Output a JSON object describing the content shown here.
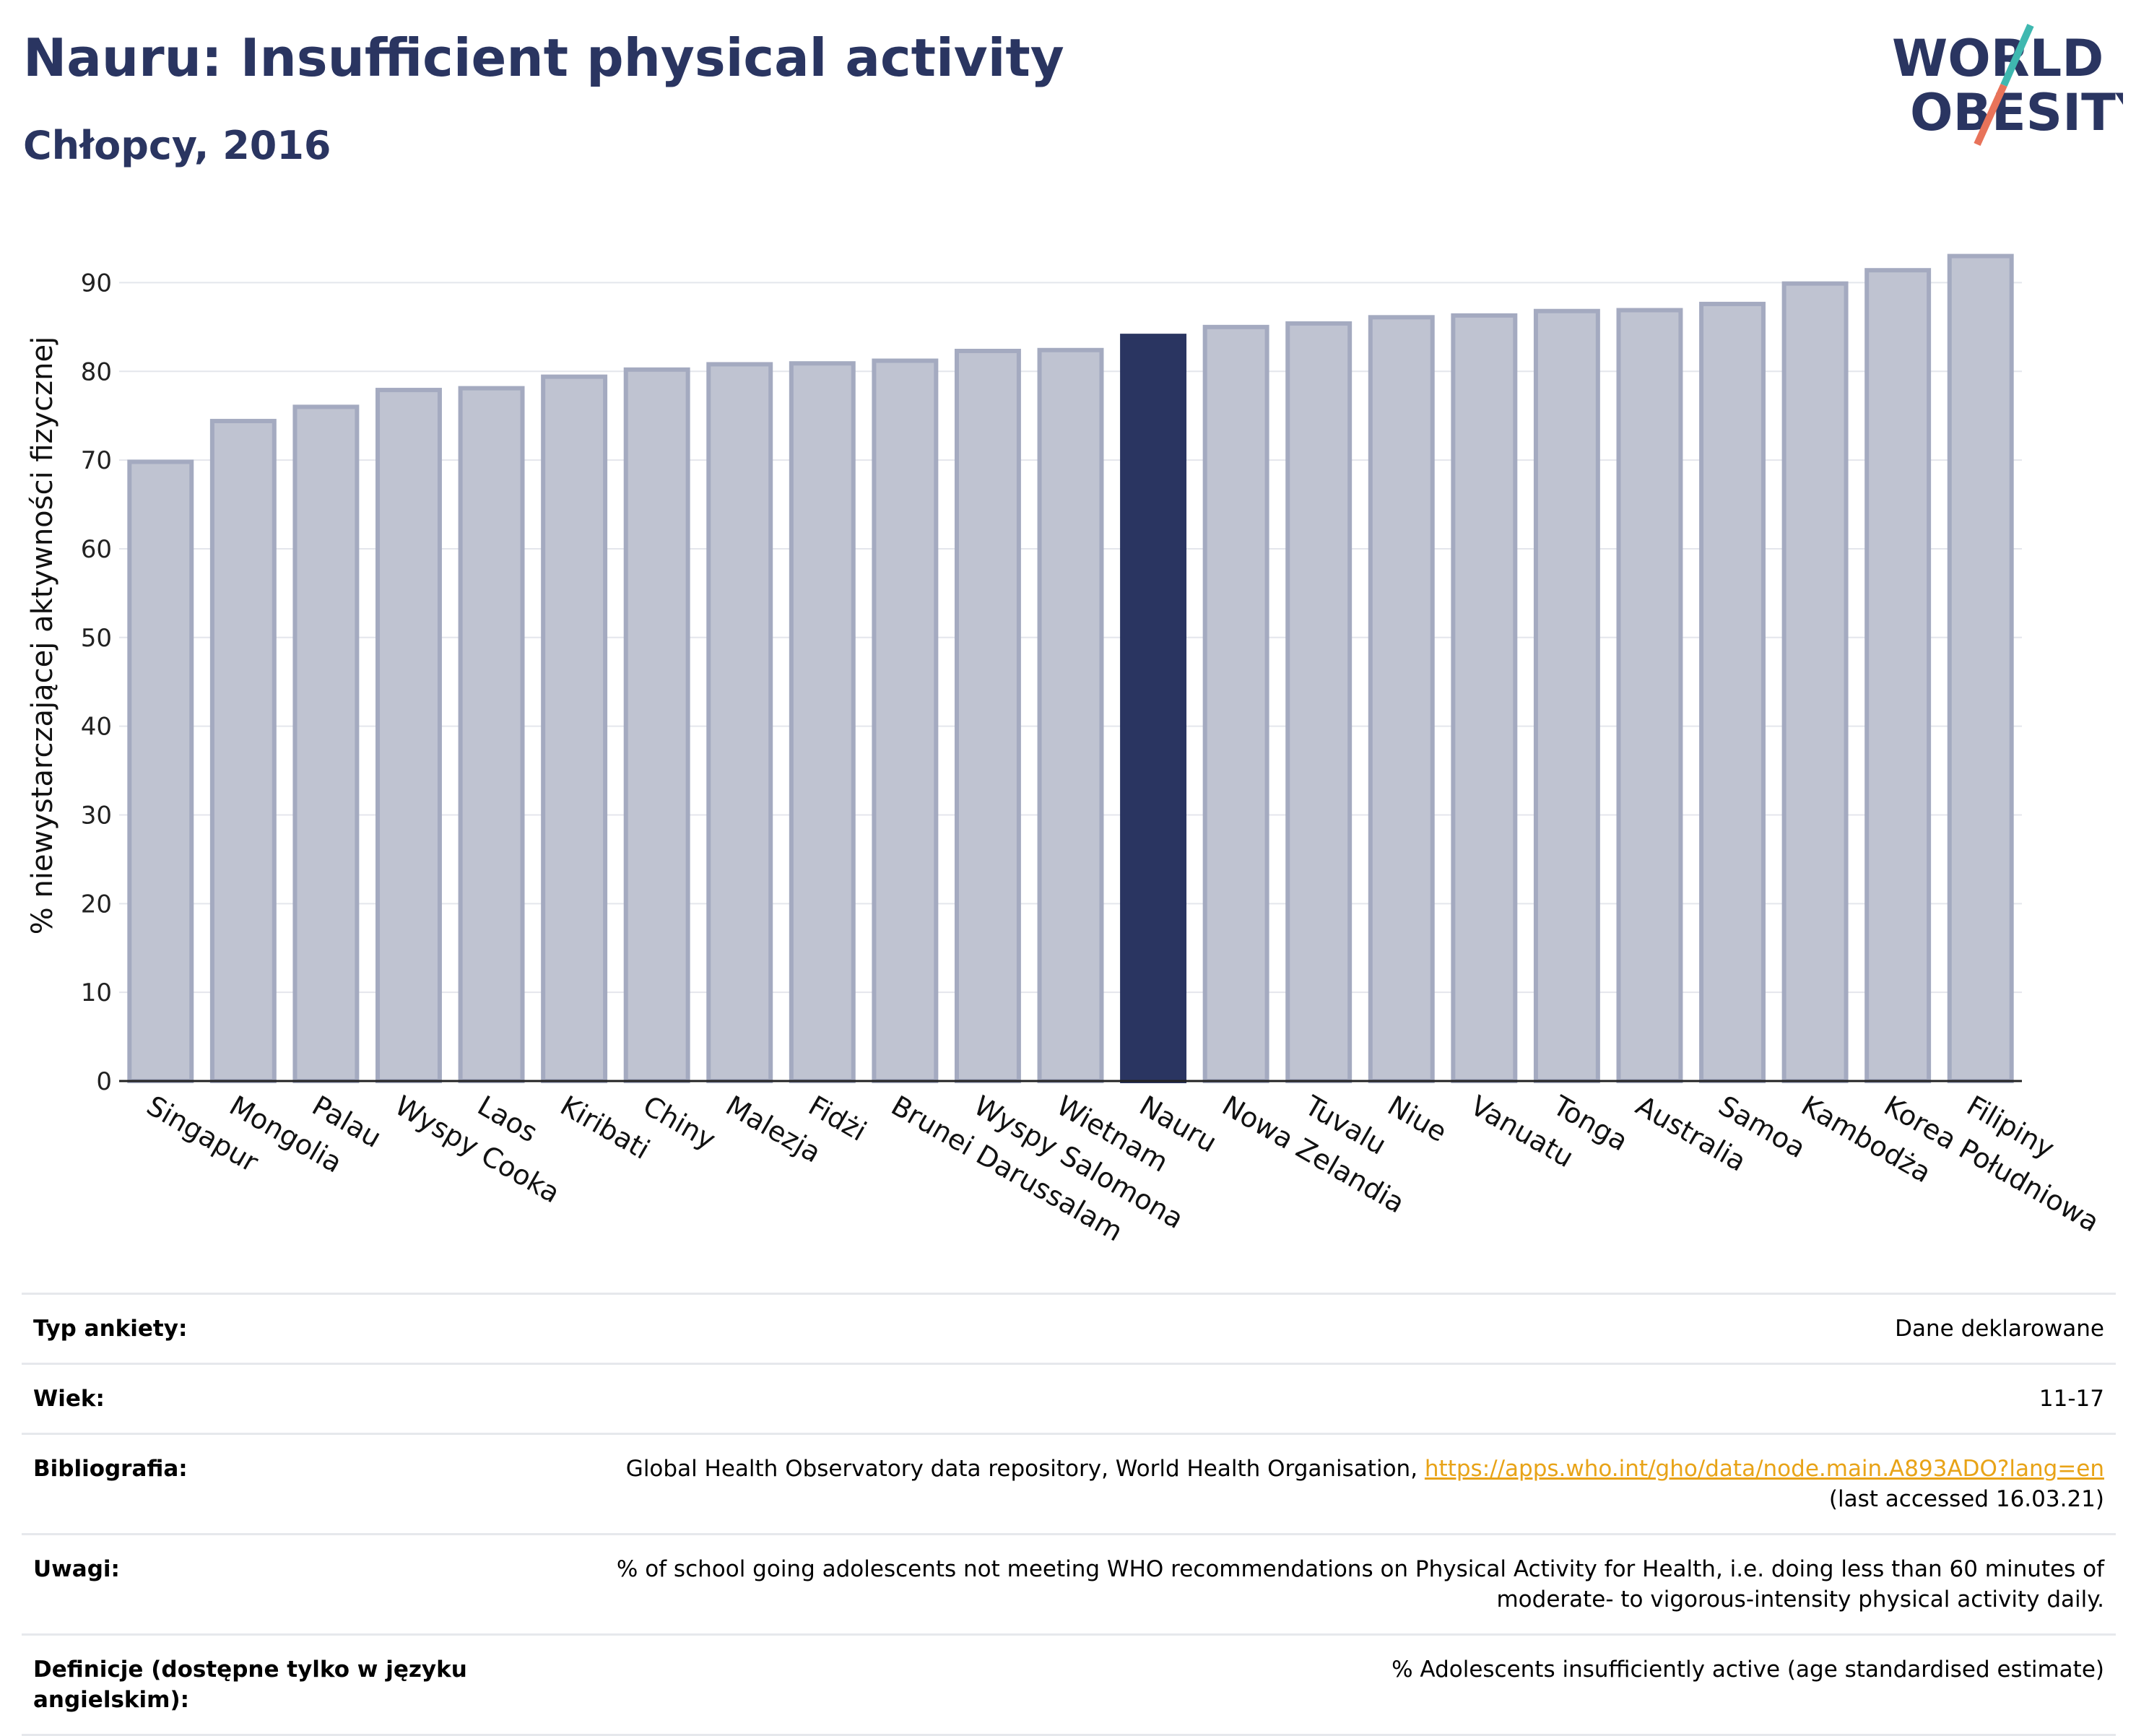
{
  "header": {
    "title": "Nauru: Insufficient physical activity",
    "subtitle": "Chłopcy, 2016",
    "logo_line1": "WORLD",
    "logo_line2": "OBESITY"
  },
  "colors": {
    "highlight_bar": "#2a3561",
    "other_bar_fill": "#bfc3d1",
    "other_bar_stroke": "#a4aac0",
    "title": "#2a3561",
    "logo_teal": "#3fb8b0",
    "logo_coral": "#e8735a",
    "link": "#e8a317"
  },
  "chart_data": {
    "type": "bar",
    "title": "Nauru: Insufficient physical activity",
    "subtitle": "Chłopcy, 2016",
    "xlabel": "",
    "ylabel": "% niewystarczającej aktywności fizycznej",
    "ylim": [
      0,
      95
    ],
    "yticks": [
      0,
      10,
      20,
      30,
      40,
      50,
      60,
      70,
      80,
      90
    ],
    "grid": true,
    "highlight": "Nauru",
    "categories": [
      "Singapur",
      "Mongolia",
      "Palau",
      "Wyspy Cooka",
      "Laos",
      "Kiribati",
      "Chiny",
      "Malezja",
      "Fidżi",
      "Brunei Darussalam",
      "Wyspy Salomona",
      "Wietnam",
      "Nauru",
      "Nowa Zelandia",
      "Tuvalu",
      "Niue",
      "Vanuatu",
      "Tonga",
      "Australia",
      "Samoa",
      "Kambodża",
      "Korea Południowa",
      "Filipiny"
    ],
    "values": [
      69.8,
      74.4,
      76.0,
      77.9,
      78.1,
      79.4,
      80.2,
      80.8,
      80.9,
      81.2,
      82.3,
      82.4,
      84.0,
      85.0,
      85.4,
      86.1,
      86.3,
      86.8,
      86.9,
      87.6,
      89.9,
      91.4,
      93.0
    ]
  },
  "info_table": [
    {
      "label": "Typ ankiety:",
      "value": "Dane deklarowane"
    },
    {
      "label": "Wiek:",
      "value": "11-17"
    },
    {
      "label": "Bibliografia:",
      "value": "Global Health Observatory data repository, World Health Organisation, ",
      "link": "https://apps.who.int/gho/data/node.main.A893ADO?lang=en",
      "value2": "(last accessed 16.03.21)"
    },
    {
      "label": "Uwagi:",
      "value": "% of school going adolescents not meeting WHO recommendations on Physical Activity for Health, i.e. doing less than 60 minutes of moderate- to vigorous-intensity physical activity daily."
    },
    {
      "label": "Definicje (dostępne tylko w języku angielskim):",
      "value": "% Adolescents insufficiently active (age standardised estimate)"
    }
  ]
}
